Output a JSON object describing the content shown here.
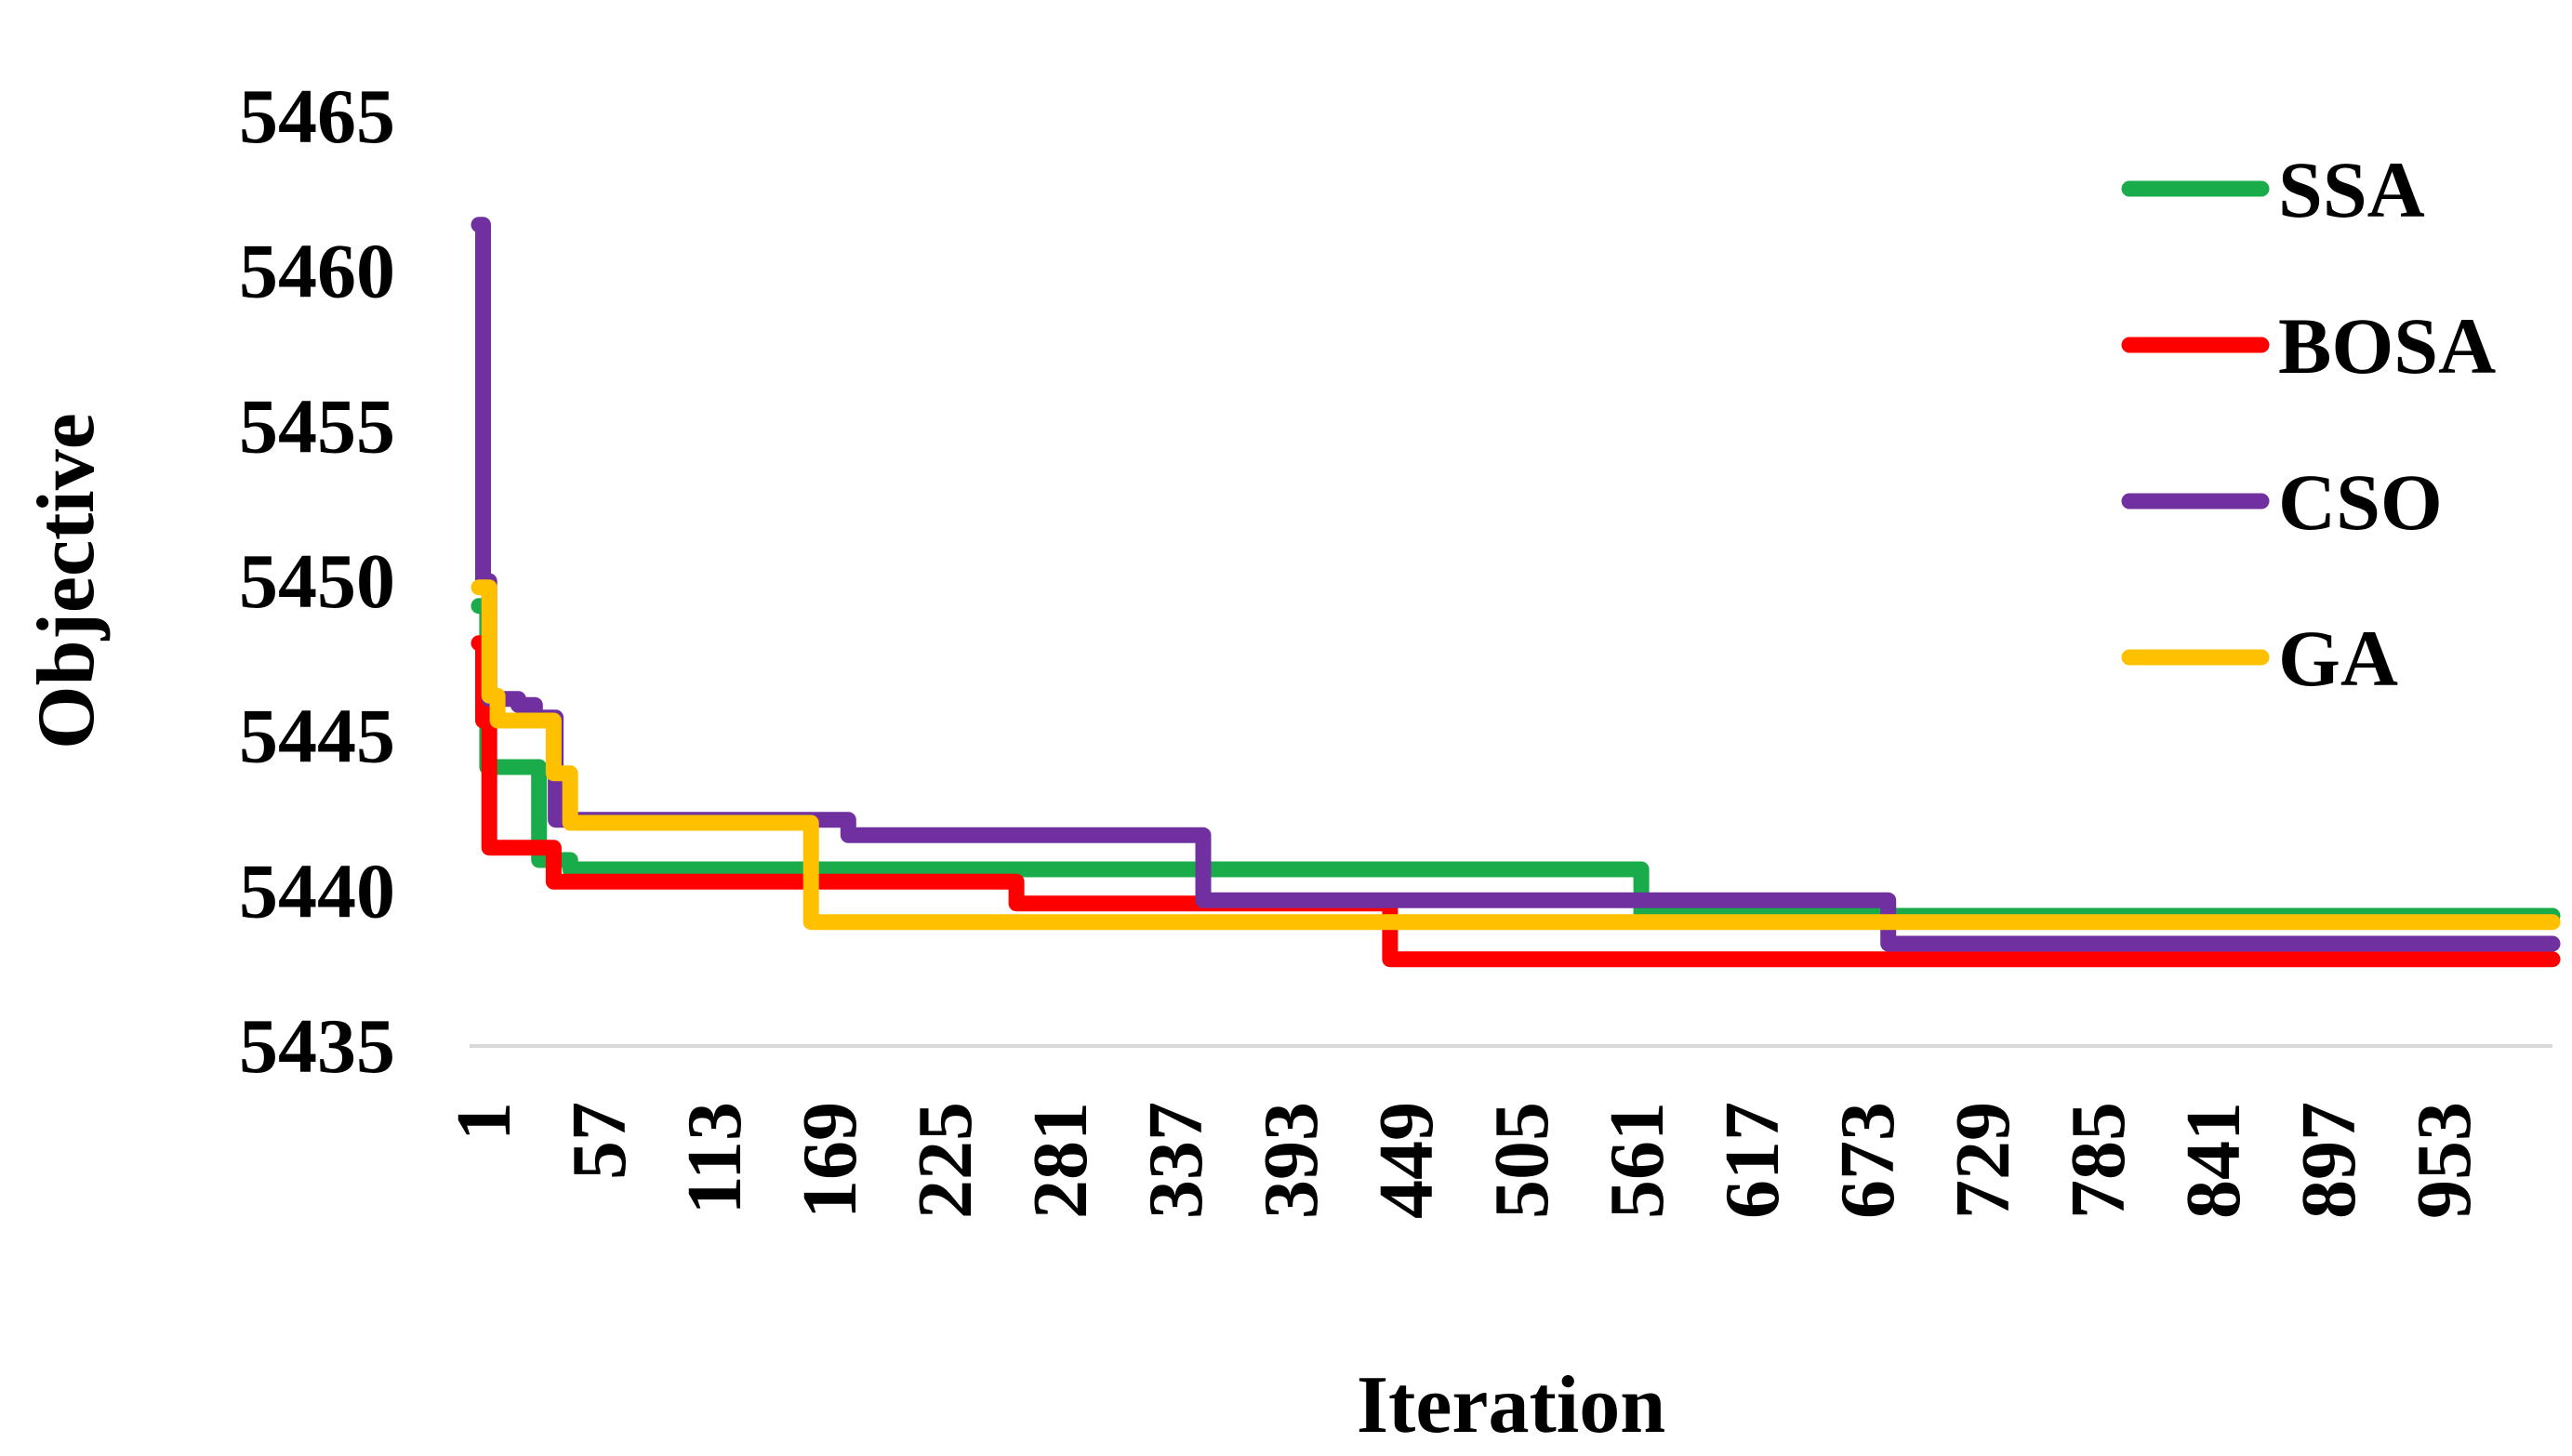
{
  "chart_data": {
    "type": "line",
    "title": "",
    "xlabel": "Iteration",
    "ylabel": "Objective",
    "xlim": [
      1,
      1000
    ],
    "ylim": [
      5435,
      5465
    ],
    "y_ticks": [
      5435,
      5440,
      5445,
      5450,
      5455,
      5460,
      5465
    ],
    "x_ticks": [
      1,
      57,
      113,
      169,
      225,
      281,
      337,
      393,
      449,
      505,
      561,
      617,
      673,
      729,
      785,
      841,
      897,
      953
    ],
    "grid": false,
    "legend_position": "top-right",
    "series": [
      {
        "name": "SSA",
        "color": "#1aab4b",
        "step": true,
        "points": [
          [
            1,
            5449.2
          ],
          [
            5,
            5444
          ],
          [
            30,
            5441
          ],
          [
            45,
            5440.7
          ],
          [
            561,
            5439.2
          ],
          [
            1000,
            5439.2
          ]
        ]
      },
      {
        "name": "BOSA",
        "color": "#ff0000",
        "step": true,
        "points": [
          [
            1,
            5448
          ],
          [
            3,
            5445.5
          ],
          [
            6,
            5441.4
          ],
          [
            37,
            5440.3
          ],
          [
            260,
            5439.6
          ],
          [
            440,
            5437.8
          ],
          [
            1000,
            5437.8
          ]
        ]
      },
      {
        "name": "CSO",
        "color": "#7030a0",
        "step": true,
        "points": [
          [
            1,
            5461.5
          ],
          [
            3,
            5450
          ],
          [
            6,
            5446.2
          ],
          [
            20,
            5446
          ],
          [
            28,
            5445.6
          ],
          [
            38,
            5442.3
          ],
          [
            179,
            5441.8
          ],
          [
            350,
            5439.7
          ],
          [
            680,
            5438.3
          ],
          [
            1000,
            5438.3
          ]
        ]
      },
      {
        "name": "GA",
        "color": "#ffc000",
        "step": true,
        "points": [
          [
            1,
            5449.8
          ],
          [
            6,
            5446.3
          ],
          [
            10,
            5445.5
          ],
          [
            37,
            5443.8
          ],
          [
            45,
            5442.2
          ],
          [
            161,
            5439
          ],
          [
            1000,
            5439
          ]
        ]
      }
    ]
  }
}
